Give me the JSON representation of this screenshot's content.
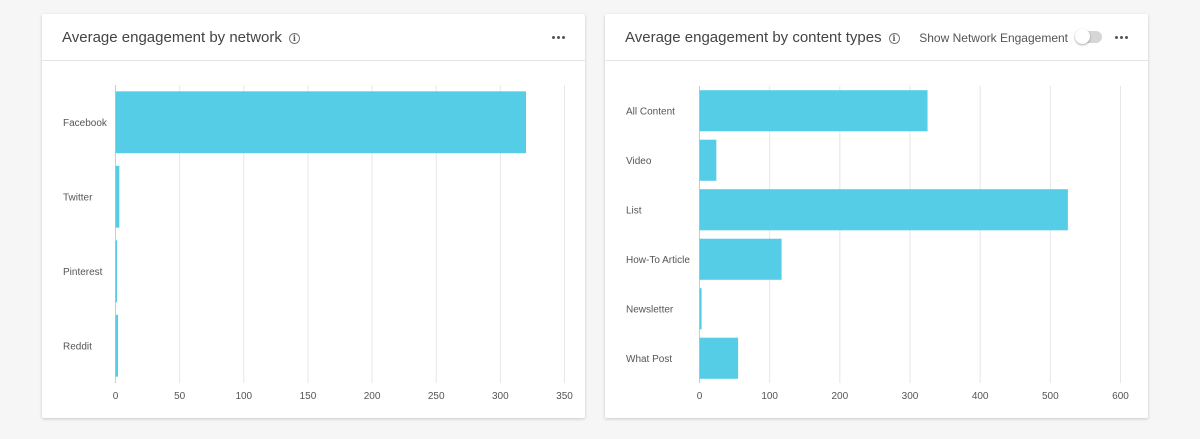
{
  "charts": {
    "network": {
      "title": "Average engagement by network",
      "info_icon": "info-icon",
      "menu_icon": "more-horizontal-icon"
    },
    "content": {
      "title": "Average engagement by content types",
      "info_icon": "info-icon",
      "menu_icon": "more-horizontal-icon",
      "toggle_label": "Show Network Engagement",
      "toggle_on": false
    }
  },
  "colors": {
    "bar": "#56cde6",
    "grid": "#e6e6e6",
    "axis": "#cccccc"
  },
  "chart_data": [
    {
      "type": "bar",
      "orientation": "horizontal",
      "title": "Average engagement by network",
      "categories": [
        "Facebook",
        "Twitter",
        "Pinterest",
        "Reddit"
      ],
      "values": [
        320,
        3,
        1,
        2
      ],
      "xlim": [
        0,
        350
      ],
      "xticks": [
        0,
        50,
        100,
        150,
        200,
        250,
        300,
        350
      ],
      "grid": true
    },
    {
      "type": "bar",
      "orientation": "horizontal",
      "title": "Average engagement by content types",
      "categories": [
        "All Content",
        "Video",
        "List",
        "How-To Article",
        "Newsletter",
        "What Post"
      ],
      "values": [
        325,
        24,
        525,
        117,
        3,
        55
      ],
      "xlim": [
        0,
        600
      ],
      "xticks": [
        0,
        100,
        200,
        300,
        400,
        500,
        600
      ],
      "grid": true
    }
  ]
}
